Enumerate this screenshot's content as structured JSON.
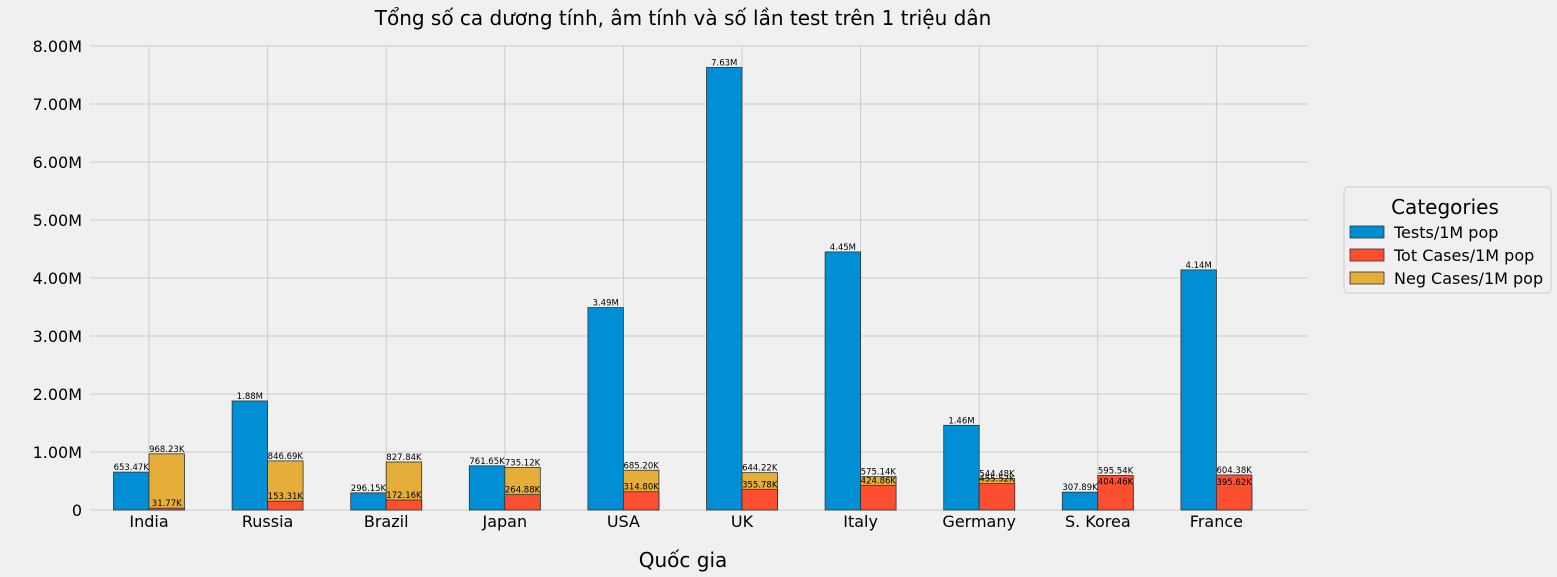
{
  "chart_data": {
    "type": "bar",
    "title": "Tổng số ca dương tính, âm tính và số lần test trên 1 triệu dân",
    "xlabel": "Quốc gia",
    "ylabel": "",
    "categories": [
      "India",
      "Russia",
      "Brazil",
      "Japan",
      "USA",
      "UK",
      "Italy",
      "Germany",
      "S. Korea",
      "France"
    ],
    "ylim": [
      0,
      8000000
    ],
    "yticks": [
      0,
      1000000,
      2000000,
      3000000,
      4000000,
      5000000,
      6000000,
      7000000,
      8000000
    ],
    "ytick_labels": [
      "0",
      "1.00M",
      "2.00M",
      "3.00M",
      "4.00M",
      "5.00M",
      "6.00M",
      "7.00M",
      "8.00M"
    ],
    "grid": true,
    "legend_title": "Categories",
    "legend_position": "right",
    "series": [
      {
        "name": "Tests/1M pop",
        "color": "#008fd5",
        "values": [
          653470,
          1880000,
          296150,
          761650,
          3490000,
          7630000,
          4450000,
          1460000,
          307890,
          4140000
        ],
        "labels": [
          "653.47K",
          "1.88M",
          "296.15K",
          "761.65K",
          "3.49M",
          "7.63M",
          "4.45M",
          "1.46M",
          "307.89K",
          "4.14M"
        ]
      },
      {
        "name": "Tot Cases/1M pop",
        "color": "#fc4f30",
        "values": [
          31770,
          153310,
          172160,
          264880,
          314800,
          355780,
          424860,
          455520,
          595540,
          604380
        ],
        "labels": [
          "31.77K",
          "153.31K",
          "172.16K",
          "264.88K",
          "314.80K",
          "355.78K",
          "424.86K",
          "455.52K",
          "595.54K",
          "604.38K"
        ]
      },
      {
        "name": "Neg Cases/1M pop",
        "color": "#e5ae38",
        "values": [
          968230,
          846690,
          827840,
          735120,
          685200,
          644220,
          575140,
          544480,
          404460,
          395620
        ],
        "labels": [
          "968.23K",
          "846.69K",
          "827.84K",
          "735.12K",
          "685.20K",
          "644.22K",
          "575.14K",
          "544.48K",
          "404.46K",
          "395.62K"
        ]
      }
    ]
  }
}
